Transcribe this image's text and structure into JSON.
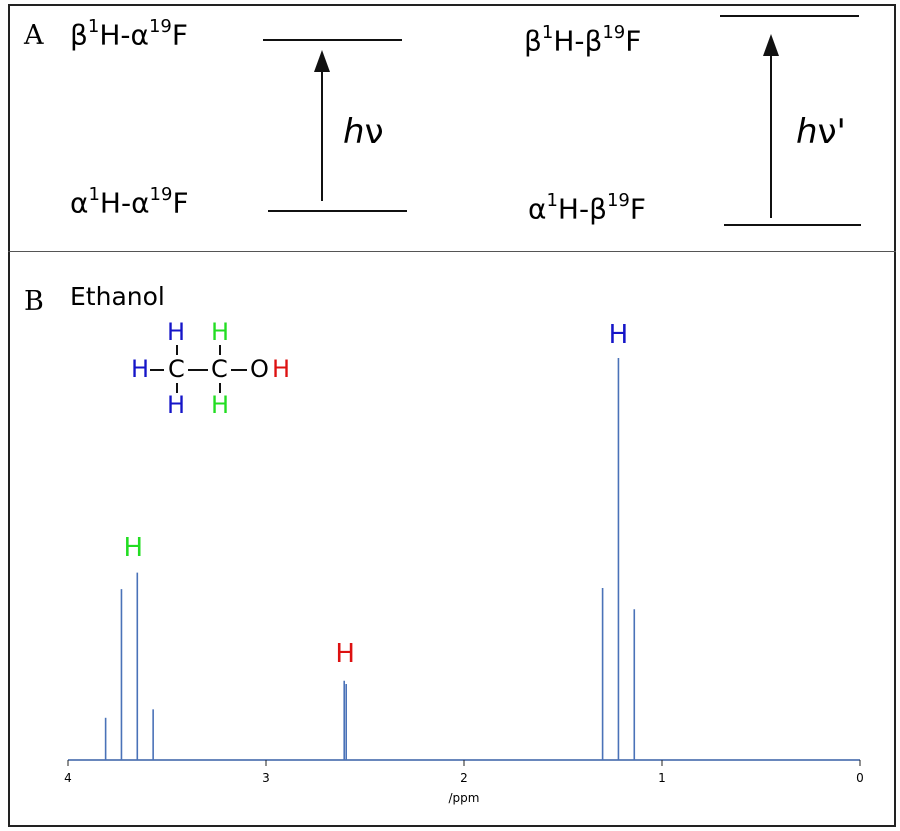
{
  "panel_a": {
    "letter": "A",
    "left": {
      "upper_label": "β¹H-α¹⁹F",
      "upper_parts": [
        "β",
        "1",
        "H-α",
        "19",
        "F"
      ],
      "lower_parts": [
        "α",
        "1",
        "H-α",
        "19",
        "F"
      ],
      "transition": [
        "h",
        "ν"
      ]
    },
    "right": {
      "upper_parts": [
        "β",
        "1",
        "H-β",
        "19",
        "F"
      ],
      "lower_parts": [
        "α",
        "1",
        "H-β",
        "19",
        "F"
      ],
      "transition": [
        "h",
        "ν'"
      ]
    }
  },
  "panel_b": {
    "letter": "B",
    "title": "Ethanol",
    "molecule": {
      "atoms": {
        "h_top_left": "H",
        "h_top_right": "H",
        "h_left": "H",
        "c1": "C",
        "c2": "C",
        "o": "O",
        "h_oh": "H",
        "h_bot_left": "H",
        "h_bot_right": "H"
      },
      "colors": {
        "ch3": "#1515c8",
        "ch2": "#22dd22",
        "oh": "#dd1111",
        "bond": "#111111"
      }
    },
    "peak_labels": [
      {
        "text": "H",
        "x": 3.67,
        "color": "#22dd22"
      },
      {
        "text": "H",
        "x": 2.6,
        "color": "#dd1111"
      },
      {
        "text": "H",
        "x": 1.22,
        "color": "#1515c8"
      }
    ]
  },
  "chart_data": {
    "type": "line",
    "xlabel": "/ppm",
    "x_reversed": true,
    "xlim": [
      4,
      0
    ],
    "ylim": [
      0,
      1
    ],
    "xticks": [
      4,
      3,
      2,
      1,
      0
    ],
    "xtick_labels": [
      "4",
      "3",
      "2",
      "1",
      "0"
    ],
    "line_color": "#4a72b8",
    "peaks": [
      {
        "x": 3.81,
        "height": 0.105
      },
      {
        "x": 3.73,
        "height": 0.425
      },
      {
        "x": 3.65,
        "height": 0.466
      },
      {
        "x": 3.57,
        "height": 0.126
      },
      {
        "x": 2.605,
        "height": 0.197
      },
      {
        "x": 2.595,
        "height": 0.189
      },
      {
        "x": 1.3,
        "height": 0.428
      },
      {
        "x": 1.22,
        "height": 1.0
      },
      {
        "x": 1.14,
        "height": 0.375
      }
    ]
  }
}
